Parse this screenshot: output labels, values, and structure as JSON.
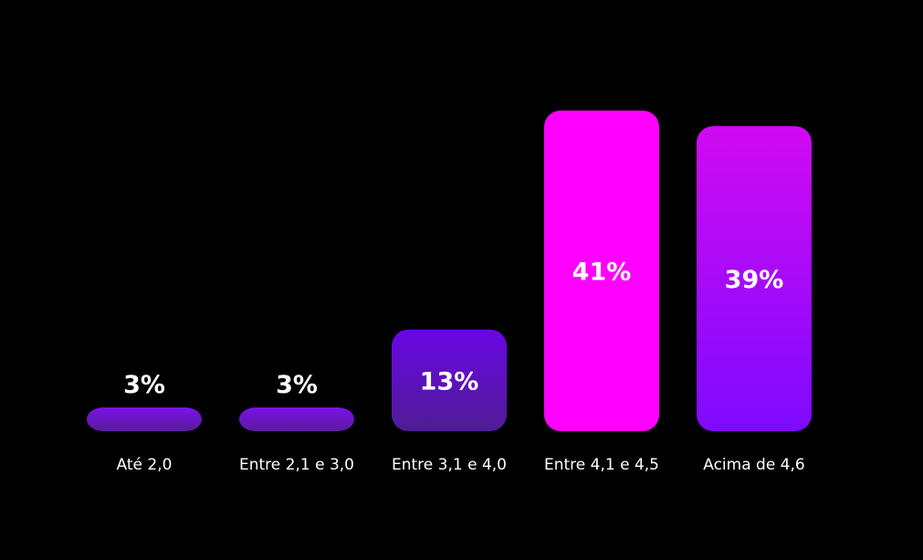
{
  "chart_data": {
    "type": "bar",
    "categories": [
      "Até 2,0",
      "Entre 2,1 e 3,0",
      "Entre 3,1 e 4,0",
      "Entre 4,1 e 4,5",
      "Acima de 4,6"
    ],
    "values": [
      3,
      3,
      13,
      41,
      39
    ],
    "value_labels": [
      "3%",
      "3%",
      "13%",
      "41%",
      "39%"
    ],
    "unit": "%",
    "ylim": [
      0,
      41
    ],
    "grid": false,
    "legend": "none",
    "colors": {
      "background": "#000000",
      "text": "#ffffff",
      "bars": [
        {
          "top": "#7a12e8",
          "bottom": "#5a1a9c"
        },
        {
          "top": "#7a12e8",
          "bottom": "#5a1a9c"
        },
        {
          "top": "#6a06e6",
          "bottom": "#4f1c94"
        },
        {
          "top": "#ff00ff",
          "bottom": "#ff00ff"
        },
        {
          "top": "#d10af2",
          "bottom": "#7e0aff"
        }
      ]
    }
  }
}
